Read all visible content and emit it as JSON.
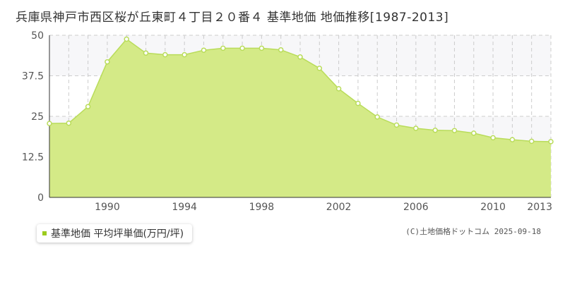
{
  "title": "兵庫県神戸市西区桜が丘東町４丁目２０番４ 基準地価 地価推移[1987-2013]",
  "legend_label": "基準地価 平均坪単価(万円/坪)",
  "copyright": "(C)土地価格ドットコム 2025-09-18",
  "colors": {
    "fill": "#d4ea87",
    "line": "#b9dc5a",
    "marker_fill": "#ffffff",
    "band": "#f7f7f9",
    "grid": "#cccccc",
    "legend_swatch": "#9ccc1e"
  },
  "chart_data": {
    "type": "area",
    "title": "兵庫県神戸市西区桜が丘東町４丁目２０番４ 基準地価 地価推移[1987-2013]",
    "xlabel": "",
    "ylabel": "",
    "x": [
      1987,
      1988,
      1989,
      1990,
      1991,
      1992,
      1993,
      1994,
      1995,
      1996,
      1997,
      1998,
      1999,
      2000,
      2001,
      2002,
      2003,
      2004,
      2005,
      2006,
      2007,
      2008,
      2009,
      2010,
      2011,
      2012,
      2013
    ],
    "series": [
      {
        "name": "基準地価 平均坪単価(万円/坪)",
        "values": [
          22.8,
          22.9,
          28.0,
          41.8,
          48.8,
          44.5,
          44.0,
          44.0,
          45.4,
          46.0,
          46.0,
          46.0,
          45.5,
          43.3,
          39.8,
          33.5,
          29.0,
          24.8,
          22.3,
          21.3,
          20.7,
          20.6,
          19.8,
          18.4,
          17.8,
          17.3,
          17.2
        ]
      }
    ],
    "xlim": [
      1987,
      2013
    ],
    "ylim": [
      0,
      50
    ],
    "x_ticks": [
      "1990",
      "1994",
      "1998",
      "2002",
      "2006",
      "2010",
      "2013"
    ],
    "x_tick_values": [
      1990,
      1994,
      1998,
      2002,
      2006,
      2010,
      2013
    ],
    "y_ticks": [
      "0",
      "12.5",
      "25",
      "37.5",
      "50"
    ],
    "y_tick_values": [
      0,
      12.5,
      25,
      37.5,
      50
    ],
    "grid": true,
    "legend": "bottom-left"
  }
}
